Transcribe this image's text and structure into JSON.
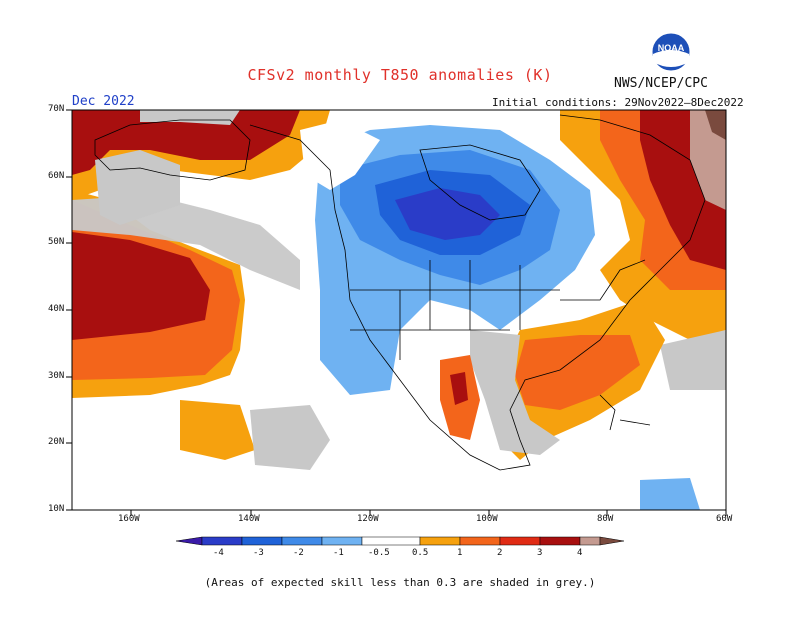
{
  "header": {
    "title": "CFSv2 monthly T850 anomalies (K)",
    "agency": "NWS/NCEP/CPC",
    "logo_text": "NOAA",
    "period": "Dec 2022",
    "initial_conditions": "Initial conditions: 29Nov2022–8Dec2022"
  },
  "axes": {
    "lat_labels": [
      "70N",
      "60N",
      "50N",
      "40N",
      "30N",
      "20N",
      "10N"
    ],
    "lon_labels": [
      "160W",
      "140W",
      "120W",
      "100W",
      "80W",
      "60W"
    ]
  },
  "colorbar": {
    "labels": [
      "-4",
      "-3",
      "-2",
      "-1",
      "-0.5",
      "0.5",
      "1",
      "2",
      "3",
      "4"
    ],
    "colors": {
      "lt_m4": "#3a1aa8",
      "m4_m3": "#2a3cc8",
      "m3_m2": "#1f62d8",
      "m2_m1": "#3f8ae8",
      "m1_m05": "#6fb2f2",
      "neutral": "#ffffff",
      "p05_1": "#f6a10e",
      "p1_2": "#f3651b",
      "p2_3": "#e02b14",
      "p3_4": "#a80f0f",
      "p4": "#c49a90",
      "gt_p4": "#7a4a3e"
    }
  },
  "legend_note": "(Areas of expected skill less than 0.3 are shaded in grey.)",
  "colors": {
    "low_skill_grey": "#c8c8c8",
    "land_outline": "#000000"
  }
}
